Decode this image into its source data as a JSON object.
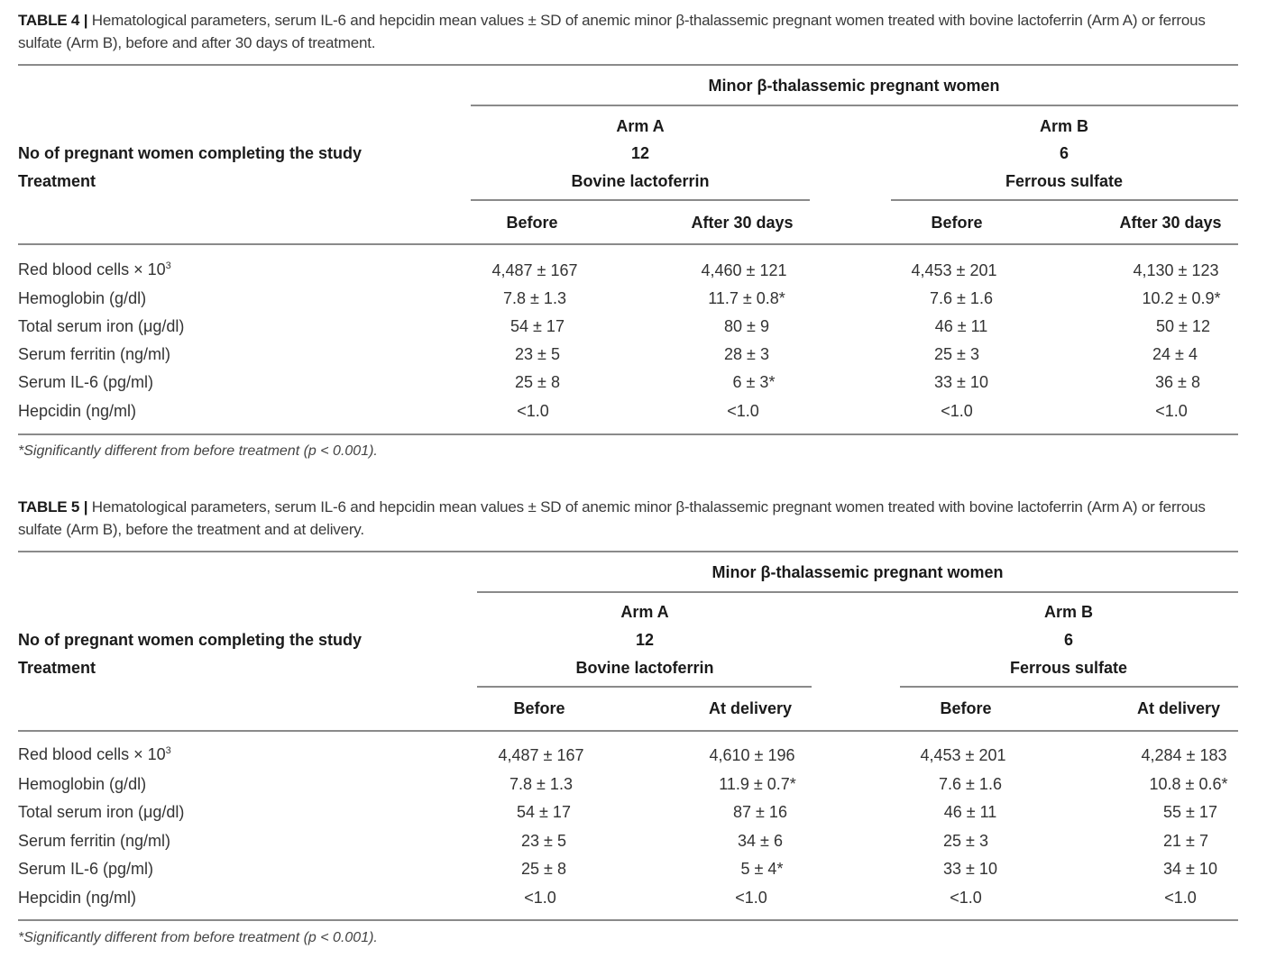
{
  "tables": [
    {
      "title_label": "TABLE 4 |",
      "title_text": " Hematological parameters, serum IL-6 and hepcidin mean values ± SD of anemic minor β-thalassemic pregnant women treated with bovine lactoferrin (Arm A) or ferrous sulfate (Arm B), before and after 30 days of treatment.",
      "group_header": "Minor β-thalassemic pregnant women",
      "arms": [
        {
          "name": "Arm A",
          "n": "12",
          "treatment": "Bovine lactoferrin",
          "cols": [
            "Before",
            "After 30 days"
          ]
        },
        {
          "name": "Arm B",
          "n": "6",
          "treatment": "Ferrous sulfate",
          "cols": [
            "Before",
            "After 30 days"
          ]
        }
      ],
      "row_label_n": "No of pregnant women completing the study",
      "row_label_treatment": "Treatment",
      "rows": [
        {
          "label": "Red blood cells × 10",
          "sup": "3",
          "values": [
            "4,487 ± 167",
            "4,460 ± 121",
            "4,453 ± 201",
            "4,130 ± 123"
          ]
        },
        {
          "label": "Hemoglobin (g/dl)",
          "values": [
            "7.8 ± 1.3",
            "11.7 ± 0.8*",
            "7.6 ± 1.6",
            "10.2 ± 0.9*"
          ]
        },
        {
          "label": "Total serum iron (μg/dl)",
          "values": [
            "54 ± 17",
            "80 ± 9",
            "46 ± 11",
            "50 ± 12"
          ]
        },
        {
          "label": "Serum ferritin (ng/ml)",
          "values": [
            "23 ± 5",
            "28 ± 3",
            "25 ± 3",
            "24 ± 4"
          ]
        },
        {
          "label": "Serum IL-6 (pg/ml)",
          "values": [
            "25 ± 8",
            "6 ± 3*",
            "33 ± 10",
            "36 ± 8"
          ]
        },
        {
          "label": "Hepcidin (ng/ml)",
          "values": [
            "<1.0",
            "<1.0",
            "<1.0",
            "<1.0"
          ]
        }
      ],
      "footnote": "*Significantly different from before treatment (p < 0.001)."
    },
    {
      "title_label": "TABLE 5 |",
      "title_text": " Hematological parameters, serum IL-6 and hepcidin mean values ± SD of anemic minor β-thalassemic pregnant women treated with bovine lactoferrin (Arm A) or ferrous sulfate (Arm B), before the treatment and at delivery.",
      "group_header": "Minor β-thalassemic pregnant women",
      "arms": [
        {
          "name": "Arm A",
          "n": "12",
          "treatment": "Bovine lactoferrin",
          "cols": [
            "Before",
            "At delivery"
          ]
        },
        {
          "name": "Arm B",
          "n": "6",
          "treatment": "Ferrous sulfate",
          "cols": [
            "Before",
            "At delivery"
          ]
        }
      ],
      "row_label_n": "No of pregnant women completing the study",
      "row_label_treatment": "Treatment",
      "rows": [
        {
          "label": "Red blood cells × 10",
          "sup": "3",
          "values": [
            "4,487 ± 167",
            "4,610 ± 196",
            "4,453 ± 201",
            "4,284 ± 183"
          ]
        },
        {
          "label": "Hemoglobin (g/dl)",
          "values": [
            "7.8 ± 1.3",
            "11.9 ± 0.7*",
            "7.6 ± 1.6",
            "10.8 ± 0.6*"
          ]
        },
        {
          "label": "Total serum iron (μg/dl)",
          "values": [
            "54 ± 17",
            "87 ± 16",
            "46 ± 11",
            "55 ± 17"
          ]
        },
        {
          "label": "Serum ferritin (ng/ml)",
          "values": [
            "23 ± 5",
            "34 ± 6",
            "25 ± 3",
            "21 ± 7"
          ]
        },
        {
          "label": "Serum IL-6 (pg/ml)",
          "values": [
            "25 ± 8",
            "5 ± 4*",
            "33 ± 10",
            "34 ± 10"
          ]
        },
        {
          "label": "Hepcidin (ng/ml)",
          "values": [
            "<1.0",
            "<1.0",
            "<1.0",
            "<1.0"
          ]
        }
      ],
      "footnote": "*Significantly different from before treatment (p < 0.001)."
    }
  ]
}
